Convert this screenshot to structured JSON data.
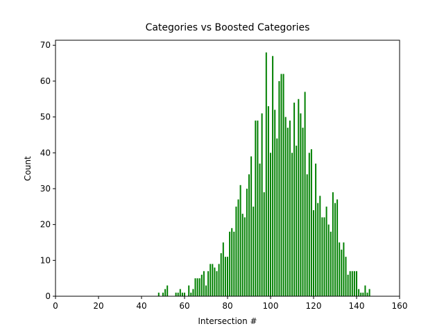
{
  "chart_data": {
    "type": "bar",
    "title": "Categories vs Boosted Categories",
    "xlabel": "Intersection #",
    "ylabel": "Count",
    "color": "#008000",
    "x": [
      48,
      50,
      51,
      52,
      56,
      57,
      58,
      59,
      60,
      62,
      63,
      64,
      65,
      66,
      67,
      68,
      69,
      70,
      71,
      72,
      73,
      74,
      75,
      76,
      77,
      78,
      79,
      80,
      81,
      82,
      83,
      84,
      85,
      86,
      87,
      88,
      89,
      90,
      91,
      92,
      93,
      94,
      95,
      96,
      97,
      98,
      99,
      100,
      101,
      102,
      103,
      104,
      105,
      106,
      107,
      108,
      109,
      110,
      111,
      112,
      113,
      114,
      115,
      116,
      117,
      118,
      119,
      120,
      121,
      122,
      123,
      124,
      125,
      126,
      127,
      128,
      129,
      130,
      131,
      132,
      133,
      134,
      135,
      136,
      137,
      138,
      139,
      140,
      141,
      142,
      143,
      144,
      145,
      146
    ],
    "values": [
      1,
      1,
      2,
      3,
      1,
      1,
      2,
      1,
      1,
      3,
      1,
      2,
      5,
      5,
      5,
      6,
      7,
      3,
      7,
      9,
      9,
      8,
      7,
      9,
      12,
      15,
      11,
      11,
      18,
      19,
      18,
      25,
      27,
      31,
      23,
      22,
      30,
      34,
      39,
      25,
      49,
      49,
      37,
      51,
      29,
      68,
      53,
      40,
      67,
      52,
      44,
      60,
      62,
      62,
      50,
      47,
      49,
      40,
      54,
      42,
      55,
      51,
      47,
      57,
      34,
      40,
      41,
      24,
      37,
      26,
      28,
      22,
      22,
      25,
      20,
      18,
      29,
      26,
      27,
      15,
      13,
      15,
      11,
      6,
      7,
      7,
      7,
      7,
      2,
      1,
      1,
      3,
      1,
      2
    ],
    "xlim": [
      0,
      160
    ],
    "ylim": [
      0,
      71.4
    ],
    "xticks": [
      0,
      20,
      40,
      60,
      80,
      100,
      120,
      140,
      160
    ],
    "yticks": [
      0,
      10,
      20,
      30,
      40,
      50,
      60,
      70
    ]
  }
}
